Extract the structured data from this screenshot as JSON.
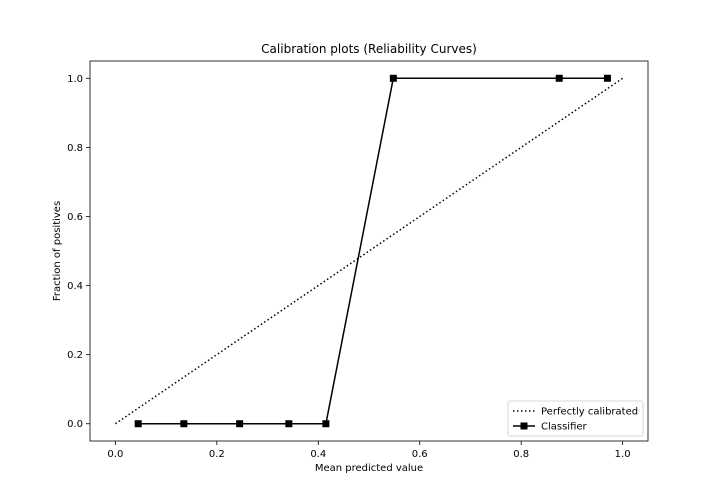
{
  "chart_data": {
    "type": "line",
    "title": "Calibration plots (Reliability Curves)",
    "xlabel": "Mean predicted value",
    "ylabel": "Fraction of positives",
    "xlim": [
      -0.05,
      1.05
    ],
    "ylim": [
      -0.05,
      1.05
    ],
    "xticks": [
      0.0,
      0.2,
      0.4,
      0.6,
      0.8,
      1.0
    ],
    "yticks": [
      0.0,
      0.2,
      0.4,
      0.6,
      0.8,
      1.0
    ],
    "xtick_labels": [
      "0.0",
      "0.2",
      "0.4",
      "0.6",
      "0.8",
      "1.0"
    ],
    "ytick_labels": [
      "0.0",
      "0.2",
      "0.4",
      "0.6",
      "0.8",
      "1.0"
    ],
    "grid": false,
    "legend_position": "lower-right",
    "series": [
      {
        "name": "Perfectly calibrated",
        "style": "dotted",
        "color": "#000000",
        "marker": "none",
        "x": [
          0.0,
          1.0
        ],
        "y": [
          0.0,
          1.0
        ]
      },
      {
        "name": "Classifier",
        "style": "solid",
        "color": "#000000",
        "marker": "square",
        "x": [
          0.045,
          0.135,
          0.245,
          0.342,
          0.415,
          0.548,
          0.875,
          0.97
        ],
        "y": [
          0.0,
          0.0,
          0.0,
          0.0,
          0.0,
          1.0,
          1.0,
          1.0
        ]
      }
    ]
  }
}
